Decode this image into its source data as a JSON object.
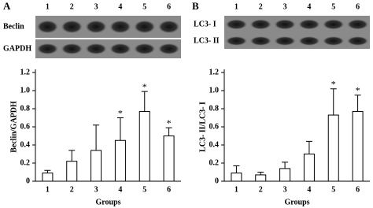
{
  "panels": [
    {
      "label": "A",
      "lanes": [
        "1",
        "2",
        "3",
        "4",
        "5",
        "6"
      ],
      "blot_rows": [
        "Beclin",
        "GAPDH"
      ]
    },
    {
      "label": "B",
      "lanes": [
        "1",
        "2",
        "3",
        "4",
        "5",
        "6"
      ],
      "blot_rows": [
        "LC3- I",
        "LC3- II"
      ]
    }
  ],
  "chart_data": [
    {
      "type": "bar",
      "ylabel": "Beclin/GAPDH",
      "xlabel": "Groups",
      "categories": [
        "1",
        "2",
        "3",
        "4",
        "5",
        "6"
      ],
      "values": [
        0.09,
        0.22,
        0.34,
        0.45,
        0.77,
        0.5
      ],
      "errors": [
        0.03,
        0.12,
        0.28,
        0.25,
        0.22,
        0.09
      ],
      "markers": [
        null,
        null,
        null,
        "*",
        "*",
        "*"
      ],
      "color": "#ffffff",
      "ylim": [
        0,
        1.2
      ],
      "yticks": [
        0,
        0.2,
        0.4,
        0.6,
        0.8,
        {
          "value": 1,
          "label": "1.0"
        },
        1.2
      ]
    },
    {
      "type": "bar",
      "ylabel": "LC3- II/LC3- I",
      "xlabel": "Groups",
      "categories": [
        "1",
        "2",
        "3",
        "4",
        "5",
        "6"
      ],
      "values": [
        0.09,
        0.07,
        0.14,
        0.3,
        0.73,
        0.77
      ],
      "errors": [
        0.08,
        0.03,
        0.07,
        0.14,
        0.29,
        0.18
      ],
      "markers": [
        null,
        null,
        null,
        null,
        "*",
        "*"
      ],
      "color": "#ffffff",
      "ylim": [
        0,
        1.2
      ],
      "yticks": [
        0,
        0.2,
        0.4,
        0.6,
        0.8,
        {
          "value": 1,
          "label": "1.0"
        },
        1.2
      ]
    }
  ]
}
